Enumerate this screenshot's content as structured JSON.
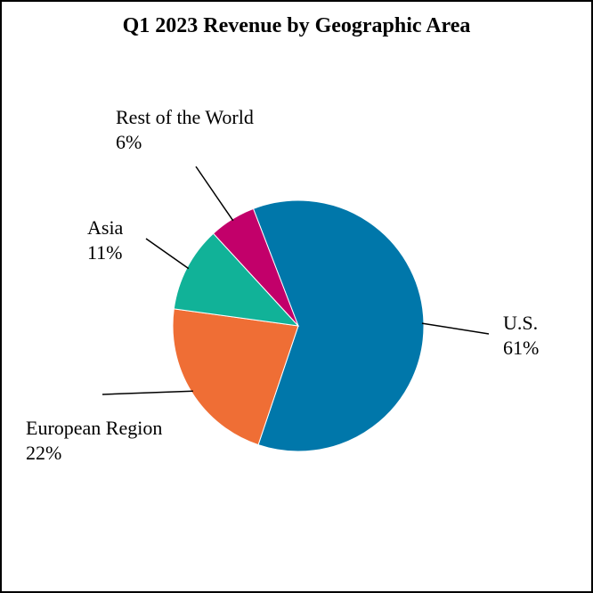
{
  "chart_data": {
    "type": "pie",
    "title": "Q1 2023 Revenue by Geographic Area",
    "unit": "%",
    "slices": [
      {
        "label": "U.S.",
        "value": 61,
        "display": "61%",
        "color": "#0077AA"
      },
      {
        "label": "European Region",
        "value": 22,
        "display": "22%",
        "color": "#EF6E35"
      },
      {
        "label": "Asia",
        "value": 11,
        "display": "11%",
        "color": "#11B298"
      },
      {
        "label": "Rest of the World",
        "value": 6,
        "display": "6%",
        "color": "#C2006A"
      }
    ],
    "legend": "none"
  }
}
